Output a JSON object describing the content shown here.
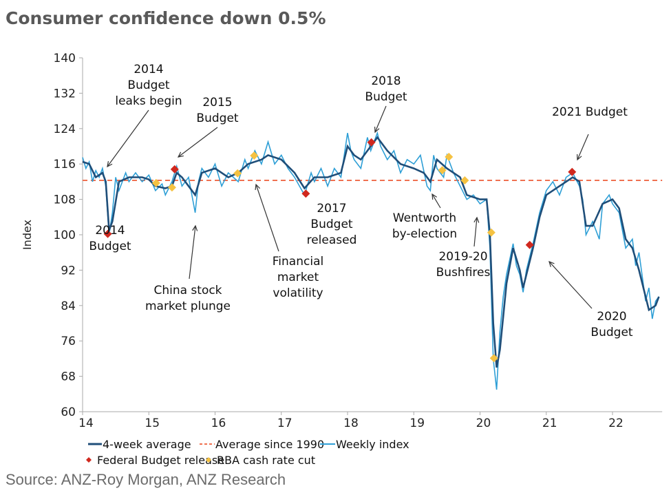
{
  "title": "Consumer confidence down 0.5%",
  "source": "Source: ANZ-Roy Morgan, ANZ Research",
  "chart_data": {
    "type": "line",
    "ylabel": "Index",
    "xlabel": "",
    "xlim": [
      14,
      22.75
    ],
    "ylim": [
      60,
      140
    ],
    "yticks": [
      60,
      68,
      76,
      84,
      92,
      100,
      108,
      116,
      124,
      132,
      140
    ],
    "xticks": [
      14,
      15,
      16,
      17,
      18,
      19,
      20,
      21,
      22
    ],
    "grid": false,
    "colors": {
      "avg4": "#1f4e79",
      "weekly": "#2e9fd6",
      "average1990": "#f07050",
      "budget": "#d0281e",
      "rba": "#f5c242"
    },
    "average_since_1990": 112.3,
    "series": [
      {
        "name": "4-week average",
        "x": [
          14.0,
          14.1,
          14.2,
          14.3,
          14.35,
          14.4,
          14.45,
          14.55,
          14.7,
          14.9,
          15.0,
          15.1,
          15.25,
          15.35,
          15.42,
          15.5,
          15.6,
          15.7,
          15.8,
          16.0,
          16.2,
          16.35,
          16.5,
          16.7,
          16.8,
          17.0,
          17.2,
          17.35,
          17.5,
          17.7,
          17.9,
          18.0,
          18.1,
          18.2,
          18.35,
          18.45,
          18.6,
          18.8,
          19.0,
          19.15,
          19.25,
          19.35,
          19.5,
          19.7,
          19.8,
          20.0,
          20.1,
          20.15,
          20.2,
          20.25,
          20.3,
          20.4,
          20.5,
          20.6,
          20.65,
          20.8,
          20.9,
          21.0,
          21.2,
          21.4,
          21.5,
          21.6,
          21.7,
          21.85,
          22.0,
          22.1,
          22.2,
          22.3,
          22.4,
          22.5,
          22.55,
          22.65,
          22.7
        ],
        "values": [
          116.5,
          116,
          113,
          114,
          112,
          101,
          103,
          112,
          113,
          113,
          112.5,
          111,
          110.5,
          111,
          114,
          113,
          111,
          109,
          114,
          115,
          113,
          114,
          116,
          117,
          118,
          117,
          114,
          110.5,
          113,
          113,
          114,
          120,
          118,
          117,
          120,
          122,
          119,
          116,
          115,
          114,
          112,
          117,
          115,
          113,
          109,
          108,
          108,
          100,
          80,
          70,
          74,
          89,
          97,
          92,
          88,
          97,
          104,
          109,
          111,
          113,
          112,
          102,
          102,
          107,
          108,
          106,
          99,
          97,
          92,
          86,
          83,
          84,
          86
        ]
      },
      {
        "name": "Weekly index",
        "x": [
          14.0,
          14.05,
          14.1,
          14.15,
          14.2,
          14.25,
          14.3,
          14.35,
          14.4,
          14.45,
          14.5,
          14.55,
          14.65,
          14.7,
          14.8,
          14.9,
          15.0,
          15.1,
          15.2,
          15.25,
          15.35,
          15.42,
          15.5,
          15.6,
          15.7,
          15.75,
          15.8,
          15.9,
          16.0,
          16.1,
          16.2,
          16.35,
          16.45,
          16.5,
          16.6,
          16.7,
          16.8,
          16.9,
          17.0,
          17.1,
          17.2,
          17.35,
          17.45,
          17.5,
          17.6,
          17.7,
          17.8,
          17.9,
          18.0,
          18.05,
          18.1,
          18.2,
          18.3,
          18.35,
          18.45,
          18.5,
          18.6,
          18.7,
          18.8,
          18.9,
          19.0,
          19.1,
          19.2,
          19.25,
          19.3,
          19.35,
          19.45,
          19.5,
          19.6,
          19.7,
          19.8,
          19.9,
          20.0,
          20.1,
          20.15,
          20.2,
          20.25,
          20.3,
          20.35,
          20.4,
          20.5,
          20.55,
          20.6,
          20.65,
          20.7,
          20.8,
          20.9,
          21.0,
          21.1,
          21.2,
          21.3,
          21.4,
          21.5,
          21.55,
          21.6,
          21.7,
          21.8,
          21.85,
          21.95,
          22.0,
          22.1,
          22.15,
          22.2,
          22.3,
          22.35,
          22.4,
          22.5,
          22.55,
          22.6,
          22.65,
          22.7
        ],
        "values": [
          117.5,
          115,
          116.5,
          112,
          114.5,
          113,
          115,
          111,
          100,
          105,
          113,
          110,
          114,
          112,
          114,
          112,
          113.5,
          110,
          111.5,
          109,
          112,
          115.5,
          111,
          113,
          105,
          112,
          115,
          113,
          116,
          111,
          114,
          112,
          117,
          115,
          119,
          116,
          121,
          116,
          118,
          115,
          113,
          109,
          114,
          112,
          115,
          111,
          115,
          113,
          123,
          119,
          117,
          115,
          122,
          119,
          123,
          120,
          117,
          119,
          114,
          117,
          116,
          118,
          111,
          110,
          118,
          115,
          113,
          118,
          114,
          111,
          108,
          109,
          107,
          108,
          97,
          72,
          65,
          78,
          86,
          91,
          98,
          93,
          91,
          87,
          92,
          98,
          105,
          110,
          112,
          109,
          113,
          114,
          111,
          108,
          100,
          103,
          99,
          107,
          109,
          107,
          105,
          101,
          97,
          99,
          93,
          96,
          85,
          88,
          81,
          85,
          86
        ]
      }
    ],
    "markers": {
      "federal_budget_release": {
        "x": [
          14.38,
          15.39,
          17.37,
          18.36,
          20.75,
          21.39
        ],
        "values": [
          100.2,
          114.8,
          109.3,
          120.9,
          97.7,
          114.2
        ]
      },
      "rba_cash_rate_cut": {
        "x": [
          15.11,
          15.35,
          16.34,
          16.59,
          19.43,
          19.53,
          19.77,
          20.17,
          20.21
        ],
        "values": [
          111.7,
          110.7,
          113.9,
          117.9,
          114.6,
          117.6,
          112.3,
          100.5,
          72.1
        ]
      }
    },
    "legend": {
      "placement": "bottom",
      "items": [
        "4-week average",
        "Average since 1990",
        "Weekly index",
        "Federal Budget release",
        "RBA cash rate cut"
      ]
    },
    "annotations": [
      {
        "lines": [
          "2014",
          "Budget",
          "leaks begin"
        ],
        "target": [
          14.38,
          115
        ]
      },
      {
        "lines": [
          "2015",
          "Budget"
        ],
        "target": [
          15.42,
          116
        ]
      },
      {
        "lines": [
          "2014",
          "Budget"
        ]
      },
      {
        "lines": [
          "China stock",
          "market plunge"
        ],
        "target": [
          15.72,
          105
        ]
      },
      {
        "lines": [
          "Financial",
          "market",
          "volatility"
        ],
        "target": [
          17.27,
          111.5
        ]
      },
      {
        "lines": [
          "2017",
          "Budget",
          "released"
        ]
      },
      {
        "lines": [
          "2018",
          "Budget"
        ],
        "target": [
          18.38,
          122.5
        ]
      },
      {
        "lines": [
          "Wentworth",
          "by-election"
        ],
        "target": [
          19.2,
          110.5
        ]
      },
      {
        "lines": [
          "2019-20",
          "Bushfires"
        ],
        "target": [
          19.87,
          106
        ]
      },
      {
        "lines": [
          "2021 Budget"
        ],
        "target": [
          21.45,
          116
        ]
      },
      {
        "lines": [
          "2020",
          "Budget"
        ],
        "target": [
          21.0,
          96.5
        ]
      }
    ]
  }
}
